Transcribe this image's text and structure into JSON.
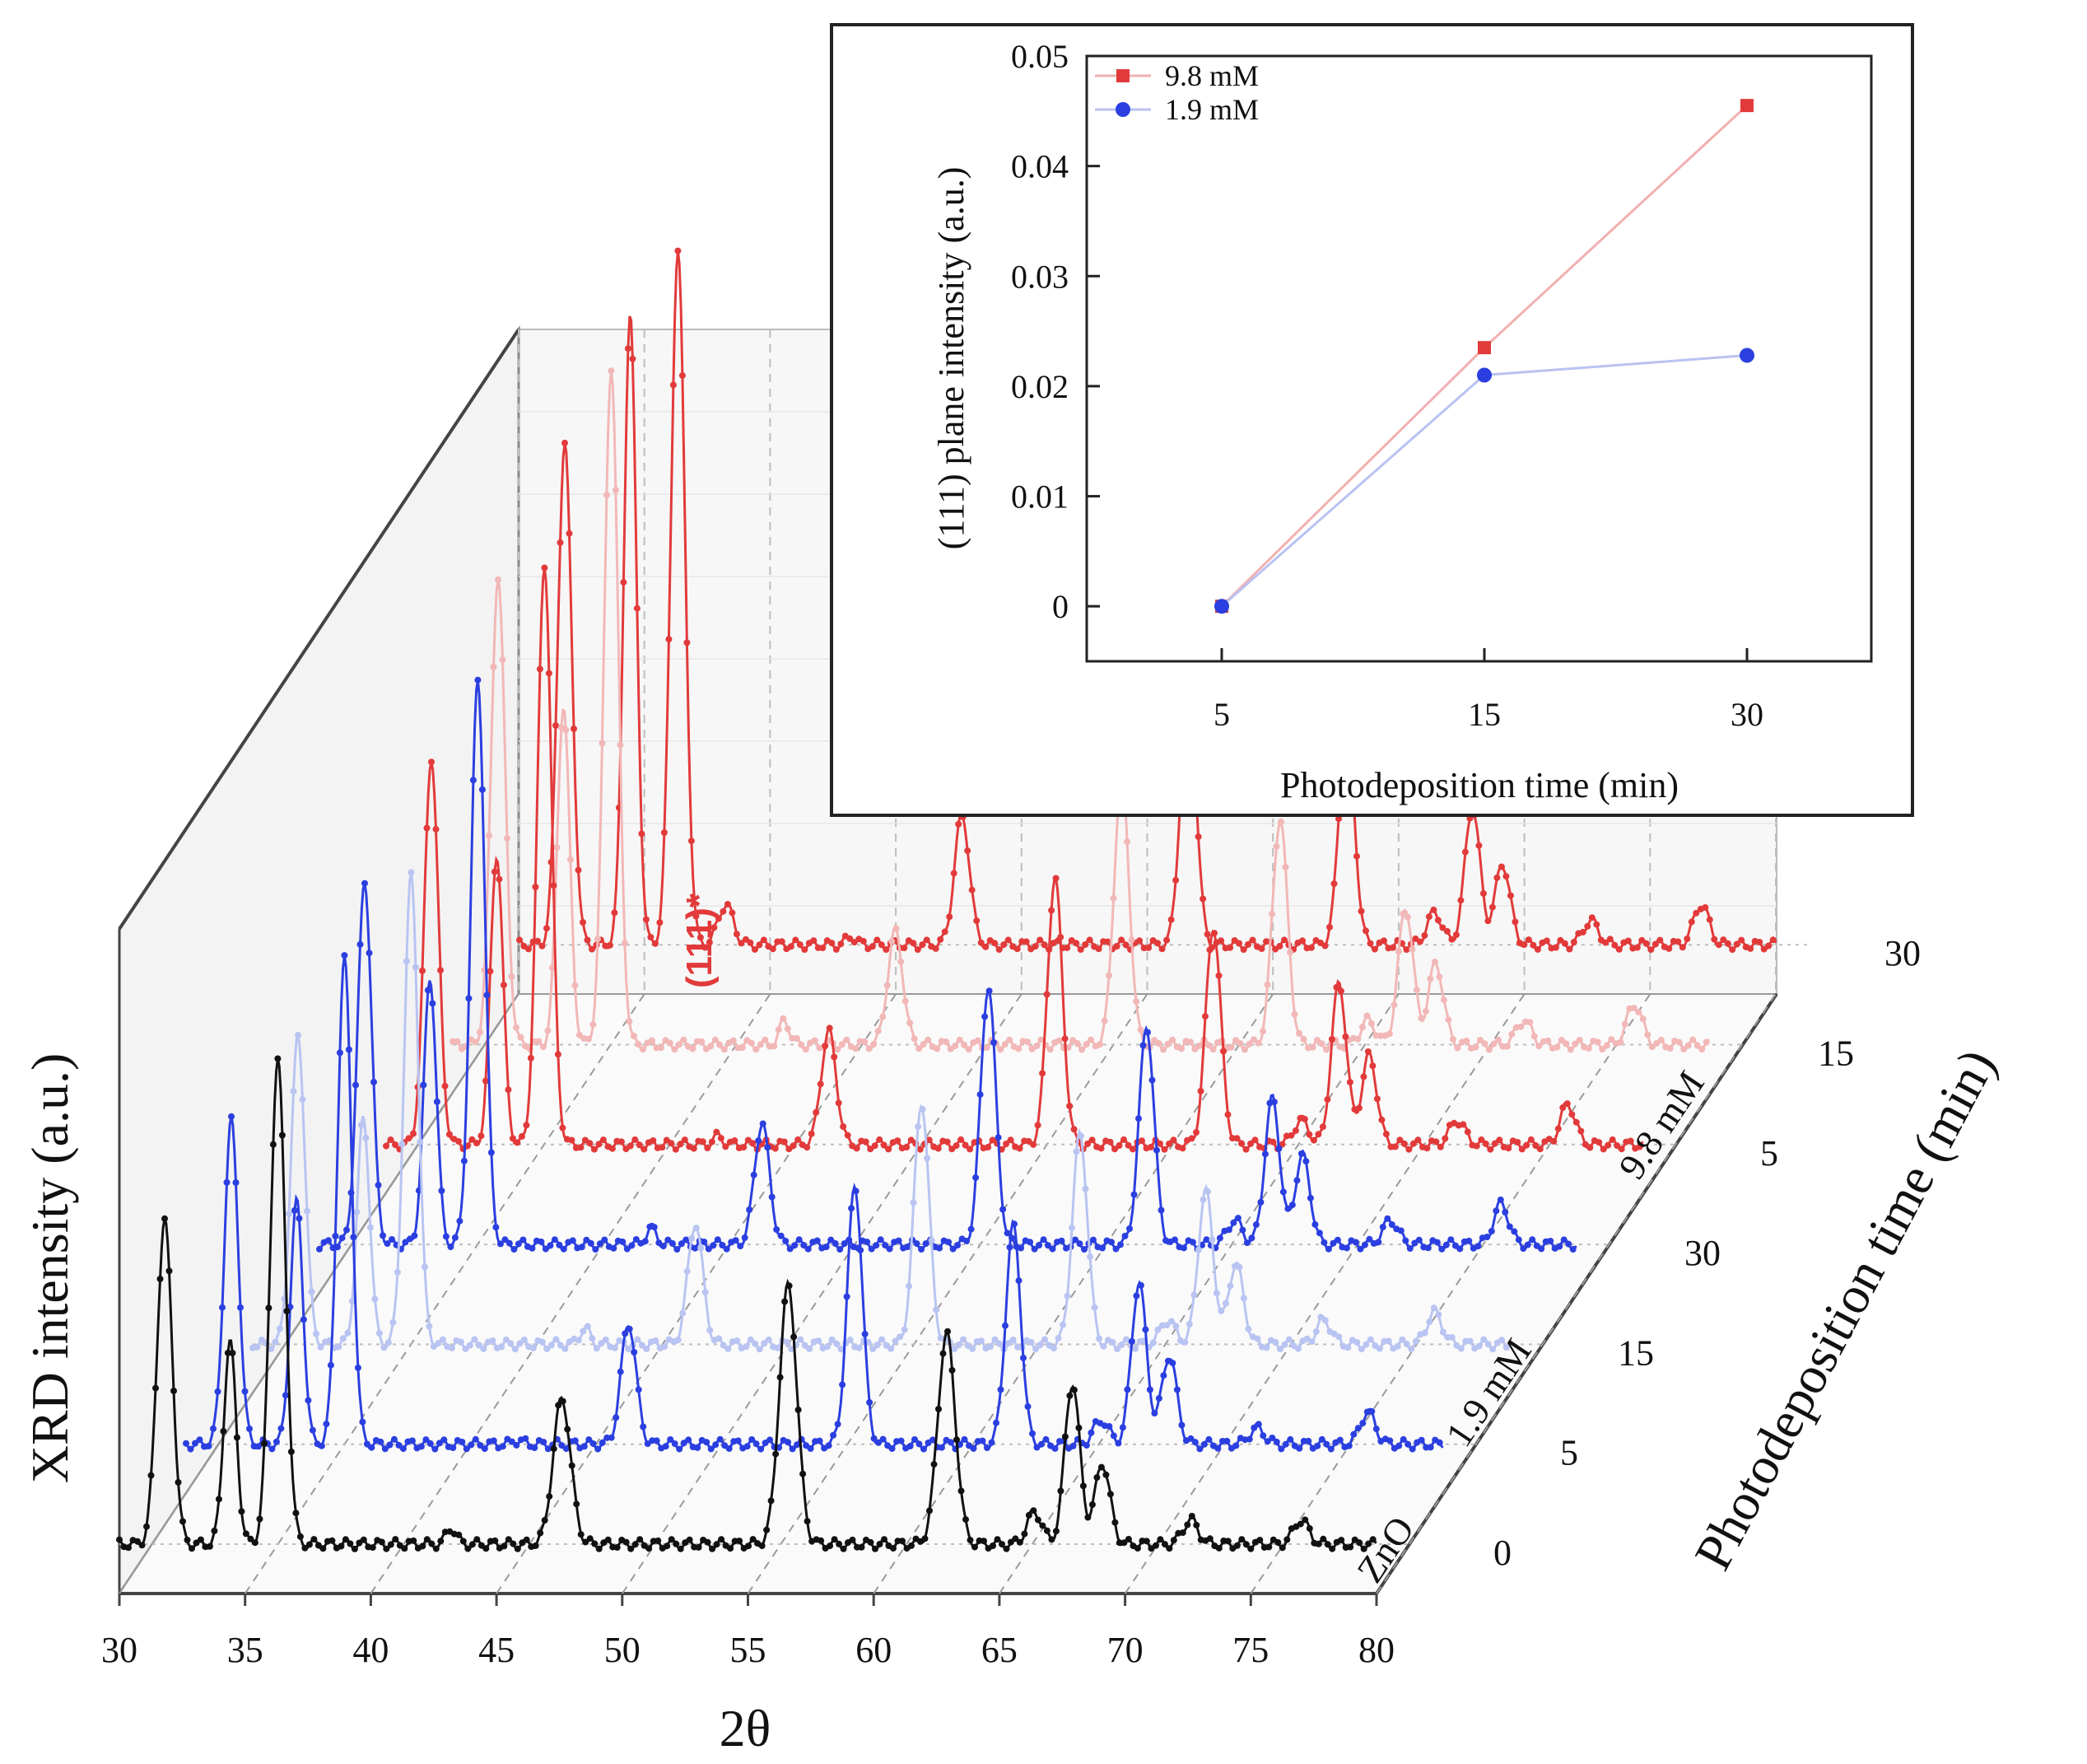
{
  "chart_data": [
    {
      "type": "line",
      "subtype": "3d-waterfall",
      "title": "",
      "xlabel": "2θ",
      "ylabel": "XRD intensity (a.u.)",
      "zlabel": "Photodeposition time (min)",
      "xlim": [
        30,
        80
      ],
      "x_ticks": [
        "30",
        "35",
        "40",
        "45",
        "50",
        "55",
        "60",
        "65",
        "70",
        "75",
        "80"
      ],
      "annotation": "(111)*",
      "annotation_color": "#e23a3a",
      "groups": [
        {
          "label": "ZnO",
          "color": "#111111"
        },
        {
          "label": "1.9 mM",
          "color": "#1f5f8b"
        },
        {
          "label": "9.8 mM",
          "color": "#e23a3a"
        }
      ],
      "series": [
        {
          "name": "ZnO",
          "time_label": "0",
          "color": "#111111",
          "peaks": [
            [
              31.8,
              0.4,
              0.3
            ],
            [
              34.4,
              0.25,
              0.25
            ],
            [
              36.3,
              0.6,
              0.3
            ],
            [
              43.2,
              0.02,
              0.2
            ],
            [
              47.6,
              0.18,
              0.35
            ],
            [
              56.6,
              0.32,
              0.35
            ],
            [
              62.9,
              0.26,
              0.35
            ],
            [
              66.4,
              0.04,
              0.3
            ],
            [
              67.9,
              0.2,
              0.3
            ],
            [
              69.1,
              0.1,
              0.3
            ],
            [
              72.6,
              0.03,
              0.3
            ],
            [
              77.0,
              0.03,
              0.3
            ]
          ]
        },
        {
          "name": "1.9 mM",
          "time_label": "5",
          "color": "#2b3fe0",
          "peaks": [
            [
              31.8,
              0.4,
              0.28
            ],
            [
              34.4,
              0.3,
              0.25
            ],
            [
              36.3,
              0.6,
              0.28
            ],
            [
              43.2,
              0.005,
              0.2
            ],
            [
              47.6,
              0.15,
              0.3
            ],
            [
              56.6,
              0.32,
              0.3
            ],
            [
              62.9,
              0.27,
              0.3
            ],
            [
              66.4,
              0.03,
              0.3
            ],
            [
              67.9,
              0.2,
              0.3
            ],
            [
              69.1,
              0.11,
              0.3
            ],
            [
              72.6,
              0.02,
              0.3
            ],
            [
              77.0,
              0.04,
              0.3
            ]
          ]
        },
        {
          "name": "1.9 mM",
          "time_label": "15",
          "color": "#b9c4f2",
          "peaks": [
            [
              31.8,
              0.38,
              0.28
            ],
            [
              34.4,
              0.28,
              0.25
            ],
            [
              36.3,
              0.58,
              0.28
            ],
            [
              43.2,
              0.02,
              0.2
            ],
            [
              47.6,
              0.15,
              0.3
            ],
            [
              56.6,
              0.3,
              0.3
            ],
            [
              62.9,
              0.26,
              0.3
            ],
            [
              66.4,
              0.03,
              0.3
            ],
            [
              67.9,
              0.19,
              0.3
            ],
            [
              69.1,
              0.1,
              0.3
            ],
            [
              72.6,
              0.03,
              0.3
            ],
            [
              77.0,
              0.04,
              0.3
            ]
          ]
        },
        {
          "name": "1.9 mM",
          "time_label": "30",
          "color": "#2b3fe0",
          "peaks": [
            [
              31.8,
              0.45,
              0.28
            ],
            [
              34.4,
              0.33,
              0.25
            ],
            [
              36.3,
              0.7,
              0.28
            ],
            [
              43.2,
              0.02,
              0.2
            ],
            [
              47.6,
              0.15,
              0.3
            ],
            [
              56.6,
              0.32,
              0.3
            ],
            [
              62.9,
              0.27,
              0.3
            ],
            [
              66.4,
              0.03,
              0.3
            ],
            [
              67.9,
              0.18,
              0.3
            ],
            [
              69.1,
              0.11,
              0.3
            ],
            [
              72.6,
              0.03,
              0.3
            ],
            [
              77.0,
              0.05,
              0.3
            ]
          ]
        },
        {
          "name": "9.8 mM",
          "time_label": "5",
          "color": "#e23a3a",
          "peaks": [
            [
              31.8,
              0.48,
              0.28
            ],
            [
              34.4,
              0.36,
              0.25
            ],
            [
              36.3,
              0.72,
              0.28
            ],
            [
              43.2,
              0.01,
              0.2
            ],
            [
              47.6,
              0.14,
              0.3
            ],
            [
              56.6,
              0.33,
              0.3
            ],
            [
              62.9,
              0.27,
              0.3
            ],
            [
              66.4,
              0.03,
              0.3
            ],
            [
              67.9,
              0.2,
              0.3
            ],
            [
              69.1,
              0.11,
              0.3
            ],
            [
              72.6,
              0.03,
              0.3
            ],
            [
              77.0,
              0.05,
              0.3
            ]
          ]
        },
        {
          "name": "9.8 mM",
          "time_label": "15",
          "color": "#f2b7b7",
          "peaks": [
            [
              31.8,
              0.58,
              0.28
            ],
            [
              34.4,
              0.42,
              0.25
            ],
            [
              36.3,
              0.84,
              0.28
            ],
            [
              43.2,
              0.03,
              0.2
            ],
            [
              47.6,
              0.14,
              0.3
            ],
            [
              56.6,
              0.33,
              0.3
            ],
            [
              62.9,
              0.28,
              0.3
            ],
            [
              66.4,
              0.03,
              0.3
            ],
            [
              67.9,
              0.17,
              0.3
            ],
            [
              69.1,
              0.1,
              0.3
            ],
            [
              72.6,
              0.03,
              0.3
            ],
            [
              77.0,
              0.05,
              0.3
            ]
          ]
        },
        {
          "name": "9.8 mM",
          "time_label": "30",
          "color": "#e23a3a",
          "peaks": [
            [
              31.8,
              0.62,
              0.28
            ],
            [
              34.4,
              0.78,
              0.25
            ],
            [
              36.3,
              0.86,
              0.28
            ],
            [
              38.2,
              0.05,
              0.3
            ],
            [
              43.2,
              0.01,
              0.2
            ],
            [
              47.6,
              0.16,
              0.3
            ],
            [
              56.6,
              0.33,
              0.3
            ],
            [
              62.9,
              0.28,
              0.3
            ],
            [
              66.4,
              0.04,
              0.3
            ],
            [
              67.9,
              0.17,
              0.3
            ],
            [
              69.1,
              0.1,
              0.3
            ],
            [
              72.6,
              0.03,
              0.3
            ],
            [
              77.0,
              0.05,
              0.3
            ]
          ]
        }
      ]
    },
    {
      "type": "line",
      "title": "",
      "xlabel": "Photodeposition time (min)",
      "ylabel": "(111) plane intensity (a.u.)",
      "categories": [
        "5",
        "15",
        "30"
      ],
      "ylim": [
        -0.005,
        0.05
      ],
      "y_ticks": [
        "0",
        "0.01",
        "0.02",
        "0.03",
        "0.04",
        "0.05"
      ],
      "legend_position": "top-left",
      "series": [
        {
          "name": "9.8 mM",
          "marker": "square",
          "color": "#e23a3a",
          "values": [
            0.0,
            0.0235,
            0.0455
          ]
        },
        {
          "name": "1.9 mM",
          "marker": "circle",
          "color": "#2b3fe0",
          "values": [
            0.0,
            0.021,
            0.0228
          ]
        }
      ]
    }
  ]
}
